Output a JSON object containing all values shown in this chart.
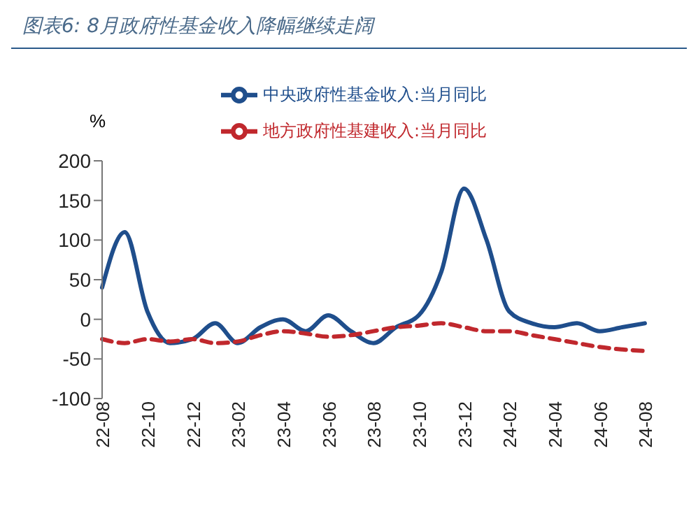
{
  "chart_data": {
    "type": "line",
    "title": "图表6: 8月政府性基金收入降幅继续走阔",
    "ylabel": "%",
    "categories": [
      "22-08",
      null,
      "22-10",
      null,
      "22-12",
      null,
      "23-02",
      null,
      "23-04",
      null,
      "23-06",
      null,
      "23-08",
      null,
      "23-10",
      null,
      "23-12",
      null,
      "24-02",
      null,
      "24-04",
      null,
      "24-06",
      null,
      "24-08"
    ],
    "series": [
      {
        "name": "中央政府性基金收入:当月同比",
        "color": "#1f4e8c",
        "line_style": "solid",
        "values": [
          40,
          110,
          10,
          -30,
          -25,
          -5,
          -30,
          -10,
          0,
          -15,
          5,
          -15,
          -30,
          -10,
          5,
          60,
          165,
          100,
          10,
          -5,
          -10,
          -5,
          -15,
          -10,
          -5
        ]
      },
      {
        "name": "地方政府性基建收入:当月同比",
        "color": "#c0282d",
        "line_style": "dashed",
        "values": [
          -25,
          -30,
          -25,
          -28,
          -25,
          -30,
          -28,
          -20,
          -15,
          -18,
          -22,
          -20,
          -15,
          -10,
          -8,
          -5,
          -10,
          -15,
          -15,
          -20,
          -25,
          -30,
          -35,
          -38,
          -40
        ]
      }
    ],
    "ylim": [
      -100,
      200
    ],
    "yticks": [
      -100,
      -50,
      0,
      50,
      100,
      150,
      200
    ],
    "grid": false,
    "legend": "top",
    "marker": "none"
  }
}
